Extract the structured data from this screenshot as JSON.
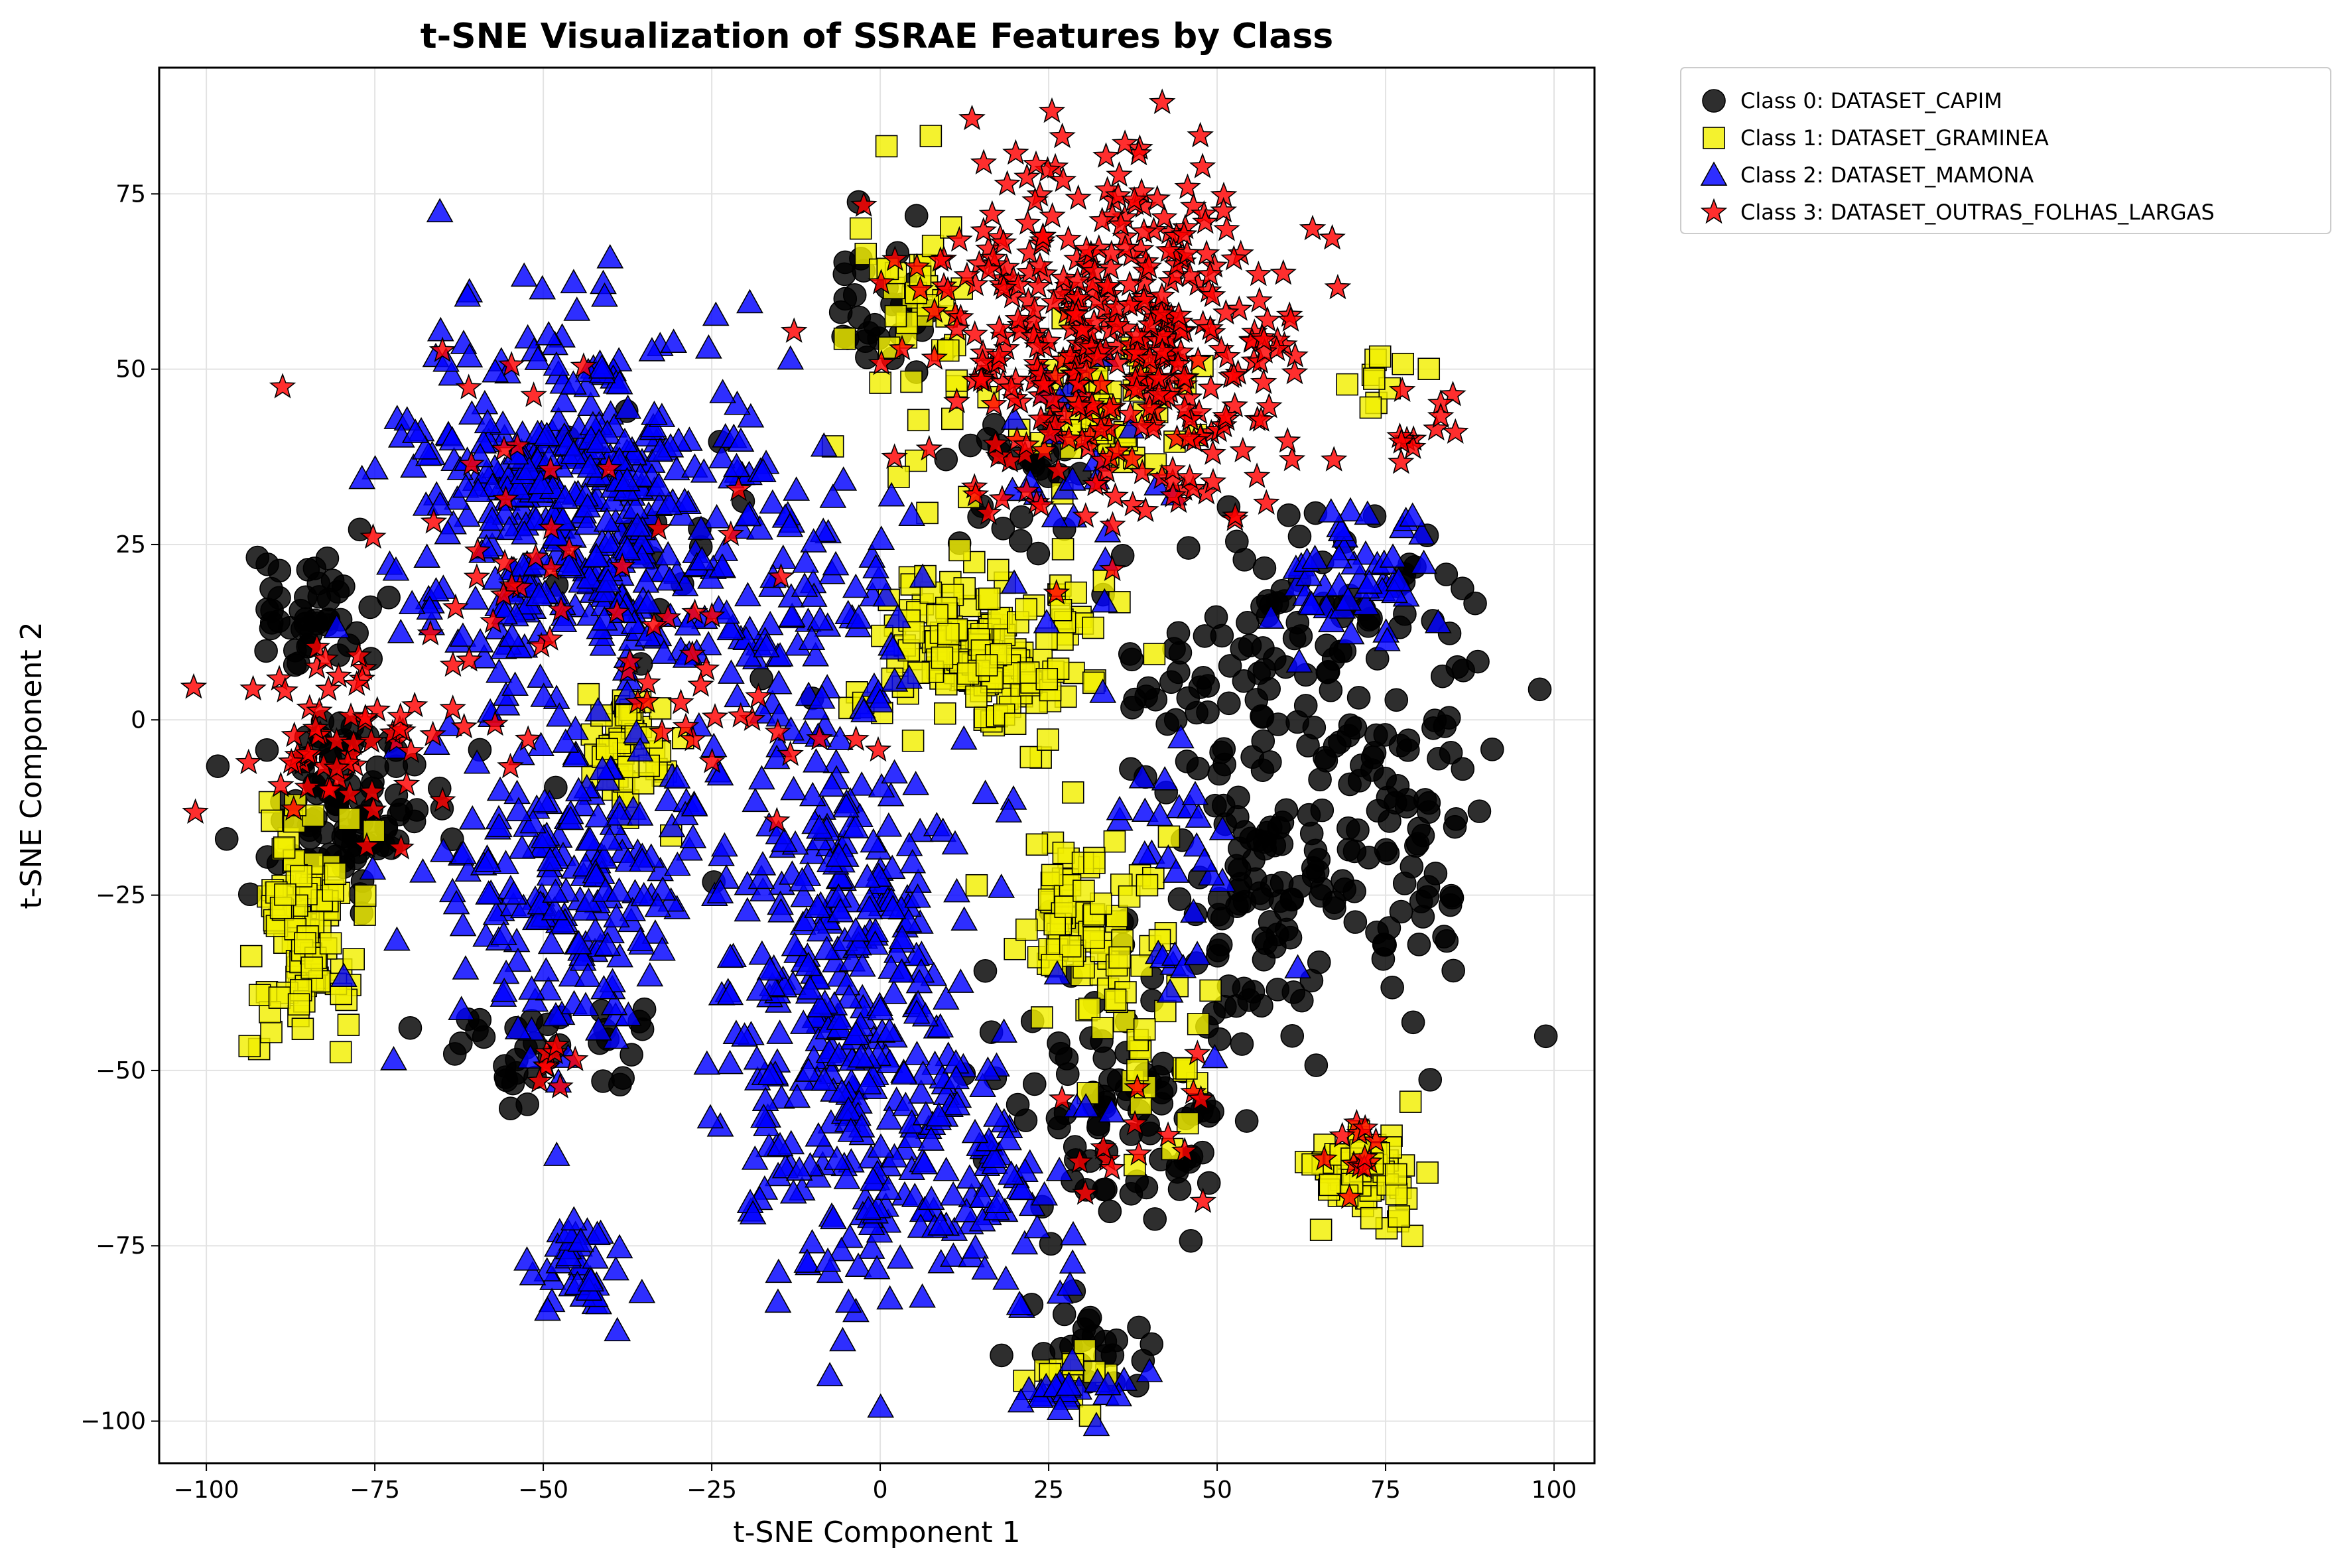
{
  "chart_data": {
    "type": "scatter",
    "title": "t-SNE Visualization of SSRAE Features by Class",
    "xlabel": "t-SNE Component 1",
    "ylabel": "t-SNE Component 2",
    "xlim": [
      -107,
      106
    ],
    "ylim": [
      -106,
      93
    ],
    "xticks": [
      -100,
      -75,
      -50,
      -25,
      0,
      25,
      50,
      75,
      100
    ],
    "yticks": [
      -100,
      -75,
      -50,
      -25,
      0,
      25,
      50,
      75
    ],
    "xtick_labels": [
      "−100",
      "−75",
      "−50",
      "−25",
      "0",
      "25",
      "50",
      "75",
      "100"
    ],
    "ytick_labels": [
      "−100",
      "−75",
      "−50",
      "−25",
      "0",
      "25",
      "50",
      "75"
    ],
    "grid": true,
    "legend_position": "outside-top-right",
    "series": [
      {
        "name": "Class 0: DATASET_CAPIM",
        "marker": "circle",
        "color": "#000000",
        "clusters": [
          {
            "cx": -85,
            "cy": 15,
            "sx": 5,
            "sy": 5,
            "n": 45
          },
          {
            "cx": -80,
            "cy": -12,
            "sx": 7,
            "sy": 6,
            "n": 90
          },
          {
            "cx": -55,
            "cy": -48,
            "sx": 6,
            "sy": 3,
            "n": 25
          },
          {
            "cx": -40,
            "cy": -45,
            "sx": 4,
            "sy": 3,
            "n": 10
          },
          {
            "cx": 0,
            "cy": 60,
            "sx": 5,
            "sy": 6,
            "n": 30
          },
          {
            "cx": 20,
            "cy": 35,
            "sx": 6,
            "sy": 6,
            "n": 25
          },
          {
            "cx": 35,
            "cy": -55,
            "sx": 9,
            "sy": 10,
            "n": 90
          },
          {
            "cx": 55,
            "cy": -25,
            "sx": 6,
            "sy": 10,
            "n": 70
          },
          {
            "cx": 75,
            "cy": -15,
            "sx": 10,
            "sy": 15,
            "n": 110
          },
          {
            "cx": 65,
            "cy": 15,
            "sx": 10,
            "sy": 10,
            "n": 60
          },
          {
            "cx": 45,
            "cy": 5,
            "sx": 8,
            "sy": 10,
            "n": 40
          },
          {
            "cx": -30,
            "cy": 20,
            "sx": 8,
            "sy": 15,
            "n": 20
          },
          {
            "cx": 30,
            "cy": -90,
            "sx": 6,
            "sy": 4,
            "n": 25
          }
        ]
      },
      {
        "name": "Class 1: DATASET_GRAMINEA",
        "marker": "square",
        "color": "#f2ef00",
        "clusters": [
          {
            "cx": -85,
            "cy": -30,
            "sx": 4,
            "sy": 7,
            "n": 110
          },
          {
            "cx": -38,
            "cy": -5,
            "sx": 3,
            "sy": 5,
            "n": 50
          },
          {
            "cx": 15,
            "cy": 10,
            "sx": 8,
            "sy": 7,
            "n": 170
          },
          {
            "cx": 5,
            "cy": 55,
            "sx": 5,
            "sy": 10,
            "n": 40
          },
          {
            "cx": 35,
            "cy": 45,
            "sx": 6,
            "sy": 5,
            "n": 45
          },
          {
            "cx": 30,
            "cy": -30,
            "sx": 5,
            "sy": 6,
            "n": 70
          },
          {
            "cx": 72,
            "cy": -65,
            "sx": 4,
            "sy": 4,
            "n": 60
          },
          {
            "cx": 40,
            "cy": -45,
            "sx": 6,
            "sy": 10,
            "n": 30
          },
          {
            "cx": 75,
            "cy": 48,
            "sx": 3,
            "sy": 3,
            "n": 10
          },
          {
            "cx": 28,
            "cy": -93,
            "sx": 3,
            "sy": 3,
            "n": 12
          }
        ]
      },
      {
        "name": "Class 2: DATASET_MAMONA",
        "marker": "triangle",
        "color": "#0000ff",
        "clusters": [
          {
            "cx": -45,
            "cy": 30,
            "sx": 13,
            "sy": 13,
            "n": 420
          },
          {
            "cx": -5,
            "cy": -40,
            "sx": 10,
            "sy": 22,
            "n": 380
          },
          {
            "cx": -45,
            "cy": -25,
            "sx": 10,
            "sy": 12,
            "n": 200
          },
          {
            "cx": -10,
            "cy": 15,
            "sx": 8,
            "sy": 10,
            "n": 80
          },
          {
            "cx": 15,
            "cy": -65,
            "sx": 7,
            "sy": 8,
            "n": 70
          },
          {
            "cx": -45,
            "cy": -78,
            "sx": 4,
            "sy": 4,
            "n": 40
          },
          {
            "cx": 70,
            "cy": 20,
            "sx": 6,
            "sy": 5,
            "n": 50
          },
          {
            "cx": 30,
            "cy": -95,
            "sx": 4,
            "sy": 2,
            "n": 25
          },
          {
            "cx": 45,
            "cy": -20,
            "sx": 5,
            "sy": 12,
            "n": 30
          },
          {
            "cx": 30,
            "cy": 30,
            "sx": 6,
            "sy": 10,
            "n": 25
          }
        ]
      },
      {
        "name": "Class 3: DATASET_OUTRAS_FOLHAS_LARGAS",
        "marker": "star",
        "color": "#ff0000",
        "clusters": [
          {
            "cx": 35,
            "cy": 55,
            "sx": 14,
            "sy": 12,
            "n": 420
          },
          {
            "cx": -80,
            "cy": -5,
            "sx": 8,
            "sy": 6,
            "n": 60
          },
          {
            "cx": -55,
            "cy": 25,
            "sx": 12,
            "sy": 15,
            "n": 40
          },
          {
            "cx": 80,
            "cy": 42,
            "sx": 3,
            "sy": 3,
            "n": 12
          },
          {
            "cx": 70,
            "cy": -60,
            "sx": 2,
            "sy": 3,
            "n": 12
          },
          {
            "cx": -25,
            "cy": 5,
            "sx": 10,
            "sy": 12,
            "n": 30
          },
          {
            "cx": 40,
            "cy": -60,
            "sx": 5,
            "sy": 5,
            "n": 15
          },
          {
            "cx": -48,
            "cy": -50,
            "sx": 2,
            "sy": 2,
            "n": 8
          }
        ]
      }
    ]
  }
}
